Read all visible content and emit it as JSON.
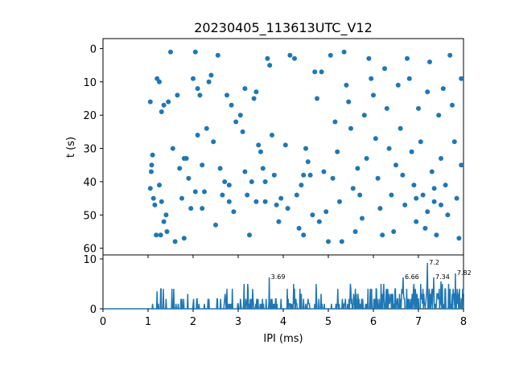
{
  "chart_data": [
    {
      "type": "scatter",
      "title": "20230405_113613UTC_V12",
      "xlabel": "",
      "ylabel": "t (s)",
      "xlim": [
        0,
        8
      ],
      "ylim": [
        62,
        -3
      ],
      "y_inverted": true,
      "yticks": [
        0,
        10,
        20,
        30,
        40,
        50,
        60
      ],
      "x_tick_labels_shown": false,
      "marker_color": "#1f77b4",
      "points": [
        [
          1.05,
          16
        ],
        [
          1.08,
          35
        ],
        [
          1.07,
          37
        ],
        [
          1.1,
          32
        ],
        [
          1.05,
          42
        ],
        [
          1.12,
          45
        ],
        [
          1.15,
          47
        ],
        [
          1.2,
          9
        ],
        [
          1.25,
          10
        ],
        [
          1.3,
          19
        ],
        [
          1.35,
          17
        ],
        [
          1.45,
          16
        ],
        [
          1.5,
          1
        ],
        [
          1.18,
          56
        ],
        [
          1.3,
          46
        ],
        [
          1.35,
          52
        ],
        [
          1.4,
          50
        ],
        [
          1.28,
          56
        ],
        [
          1.42,
          55
        ],
        [
          1.25,
          41
        ],
        [
          1.55,
          30
        ],
        [
          1.6,
          58
        ],
        [
          1.65,
          14
        ],
        [
          1.7,
          36
        ],
        [
          1.75,
          45
        ],
        [
          1.8,
          33
        ],
        [
          1.85,
          33
        ],
        [
          1.8,
          57
        ],
        [
          1.9,
          39
        ],
        [
          1.95,
          48
        ],
        [
          2.0,
          9
        ],
        [
          2.05,
          1
        ],
        [
          2.05,
          43
        ],
        [
          2.1,
          26
        ],
        [
          2.1,
          12
        ],
        [
          2.15,
          14
        ],
        [
          2.2,
          35
        ],
        [
          2.2,
          48
        ],
        [
          2.3,
          24
        ],
        [
          2.25,
          43
        ],
        [
          2.35,
          10
        ],
        [
          2.4,
          8
        ],
        [
          2.45,
          28
        ],
        [
          2.5,
          53
        ],
        [
          2.55,
          2
        ],
        [
          2.6,
          36
        ],
        [
          2.65,
          44
        ],
        [
          2.75,
          14
        ],
        [
          2.8,
          46
        ],
        [
          2.85,
          17
        ],
        [
          2.7,
          40
        ],
        [
          2.8,
          41
        ],
        [
          2.9,
          49
        ],
        [
          2.95,
          22
        ],
        [
          3.05,
          20
        ],
        [
          3.1,
          25
        ],
        [
          3.15,
          12
        ],
        [
          3.15,
          37
        ],
        [
          3.2,
          44
        ],
        [
          3.25,
          56
        ],
        [
          3.3,
          40
        ],
        [
          3.35,
          15
        ],
        [
          3.4,
          13
        ],
        [
          3.4,
          46
        ],
        [
          3.45,
          29
        ],
        [
          3.5,
          31
        ],
        [
          3.55,
          36
        ],
        [
          3.6,
          40
        ],
        [
          3.6,
          46
        ],
        [
          3.65,
          3
        ],
        [
          3.7,
          5
        ],
        [
          3.75,
          26
        ],
        [
          3.8,
          38
        ],
        [
          3.85,
          47
        ],
        [
          3.95,
          45
        ],
        [
          3.9,
          52
        ],
        [
          4.05,
          29
        ],
        [
          4.1,
          48
        ],
        [
          4.15,
          2
        ],
        [
          4.25,
          3
        ],
        [
          4.3,
          44
        ],
        [
          4.35,
          54
        ],
        [
          4.4,
          41
        ],
        [
          4.45,
          38
        ],
        [
          4.45,
          56
        ],
        [
          4.5,
          30
        ],
        [
          4.55,
          34
        ],
        [
          4.6,
          38
        ],
        [
          4.65,
          50
        ],
        [
          4.7,
          7
        ],
        [
          4.75,
          15
        ],
        [
          4.8,
          52
        ],
        [
          4.85,
          7
        ],
        [
          4.9,
          37
        ],
        [
          4.95,
          49
        ],
        [
          5.0,
          58
        ],
        [
          5.05,
          2
        ],
        [
          5.1,
          39
        ],
        [
          5.15,
          22
        ],
        [
          5.2,
          31
        ],
        [
          5.25,
          46
        ],
        [
          5.3,
          58
        ],
        [
          5.35,
          1
        ],
        [
          5.4,
          11
        ],
        [
          5.45,
          16
        ],
        [
          5.5,
          24
        ],
        [
          5.55,
          42
        ],
        [
          5.6,
          55
        ],
        [
          5.65,
          36
        ],
        [
          5.7,
          44
        ],
        [
          5.75,
          51
        ],
        [
          5.8,
          20
        ],
        [
          5.85,
          33
        ],
        [
          5.9,
          3
        ],
        [
          5.95,
          9
        ],
        [
          6.0,
          14
        ],
        [
          6.05,
          27
        ],
        [
          6.1,
          39
        ],
        [
          6.15,
          48
        ],
        [
          6.2,
          56
        ],
        [
          6.25,
          6
        ],
        [
          6.3,
          18
        ],
        [
          6.35,
          30
        ],
        [
          6.4,
          44
        ],
        [
          6.45,
          55
        ],
        [
          6.5,
          35
        ],
        [
          6.55,
          11
        ],
        [
          6.6,
          24
        ],
        [
          6.65,
          38
        ],
        [
          6.7,
          47
        ],
        [
          6.75,
          3
        ],
        [
          6.8,
          9
        ],
        [
          6.85,
          31
        ],
        [
          6.9,
          41
        ],
        [
          6.95,
          52
        ],
        [
          7.0,
          18
        ],
        [
          7.05,
          28
        ],
        [
          7.1,
          44
        ],
        [
          7.15,
          54
        ],
        [
          7.2,
          13
        ],
        [
          7.25,
          4
        ],
        [
          7.3,
          37
        ],
        [
          7.35,
          46
        ],
        [
          7.4,
          56
        ],
        [
          7.45,
          20
        ],
        [
          7.5,
          33
        ],
        [
          7.55,
          12
        ],
        [
          7.6,
          41
        ],
        [
          7.65,
          50
        ],
        [
          7.7,
          2
        ],
        [
          7.75,
          17
        ],
        [
          7.8,
          28
        ],
        [
          7.85,
          45
        ],
        [
          7.9,
          57
        ],
        [
          7.95,
          9
        ],
        [
          7.95,
          35
        ],
        [
          7.5,
          47
        ],
        [
          7.2,
          49
        ],
        [
          6.95,
          45
        ],
        [
          7.35,
          42
        ]
      ]
    },
    {
      "type": "line",
      "title": "",
      "xlabel": "IPI (ms)",
      "ylabel": "",
      "xlim": [
        0,
        8
      ],
      "ylim": [
        0,
        10
      ],
      "xticks": [
        0,
        1,
        2,
        3,
        4,
        5,
        6,
        7,
        8
      ],
      "yticks": [
        0,
        10
      ],
      "line_color": "#1f77b4",
      "annotations": [
        {
          "label": "3.69",
          "x": 3.69,
          "y": 6.3
        },
        {
          "label": "6.66",
          "x": 6.66,
          "y": 6.3
        },
        {
          "label": "7.2",
          "x": 7.2,
          "y": 9.2
        },
        {
          "label": "7.34",
          "x": 7.34,
          "y": 6.3
        },
        {
          "label": "7.82",
          "x": 7.82,
          "y": 7.1
        }
      ]
    }
  ]
}
